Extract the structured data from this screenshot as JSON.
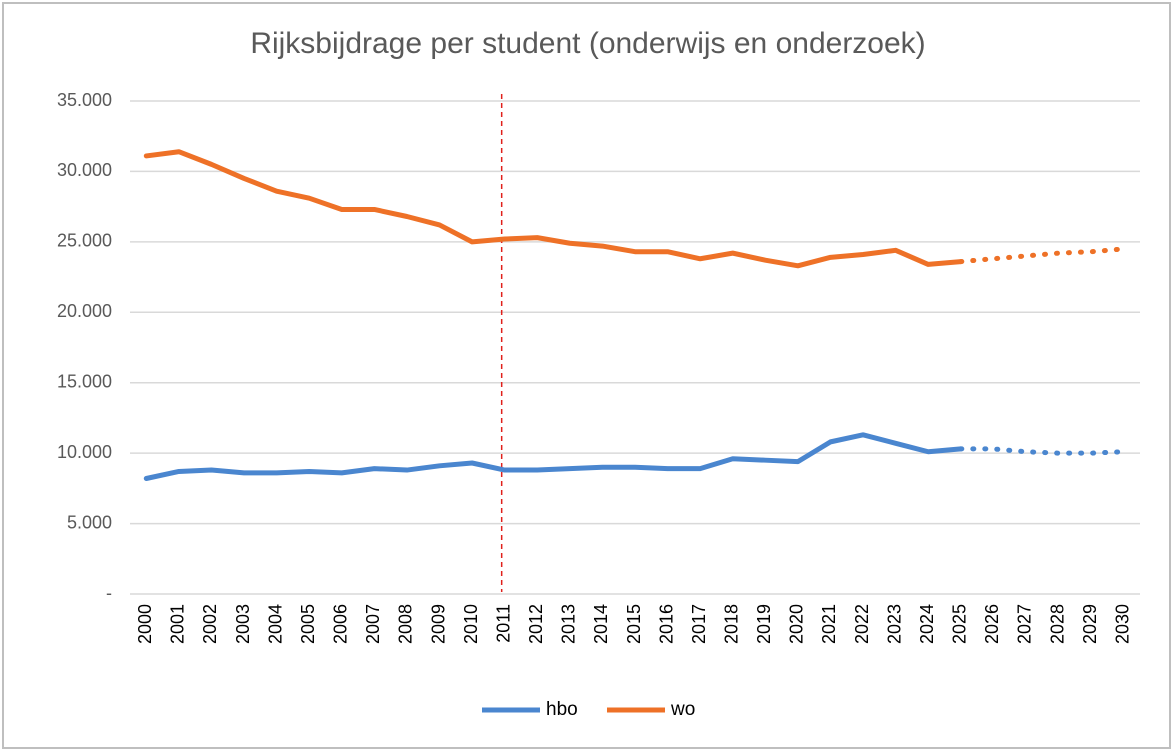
{
  "chart_data": {
    "type": "line",
    "title": "Rijksbijdrage per student (onderwijs en onderzoek)",
    "categories": [
      "2000",
      "2001",
      "2002",
      "2003",
      "2004",
      "2005",
      "2006",
      "2007",
      "2008",
      "2009",
      "2010",
      "2011",
      "2012",
      "2013",
      "2014",
      "2015",
      "2016",
      "2017",
      "2018",
      "2019",
      "2020",
      "2021",
      "2022",
      "2023",
      "2024",
      "2025",
      "2026",
      "2027",
      "2028",
      "2029",
      "2030"
    ],
    "series": [
      {
        "name": "hbo",
        "color": "#4a86cf",
        "values": [
          8200,
          8700,
          8800,
          8600,
          8600,
          8700,
          8600,
          8900,
          8800,
          9100,
          9300,
          8800,
          8800,
          8900,
          9000,
          9000,
          8900,
          8900,
          9600,
          9500,
          9400,
          10800,
          11300,
          10700,
          10100,
          10300,
          10300,
          10100,
          10000,
          10000,
          10100
        ]
      },
      {
        "name": "wo",
        "color": "#ee7127",
        "values": [
          31100,
          31400,
          30500,
          29500,
          28600,
          28100,
          27300,
          27300,
          26800,
          26200,
          25000,
          25200,
          25300,
          24900,
          24700,
          24300,
          24300,
          23800,
          24200,
          23700,
          23300,
          23900,
          24100,
          24400,
          23400,
          23600,
          23800,
          24000,
          24200,
          24300,
          24500
        ]
      }
    ],
    "forecast_from": "2025",
    "vline": {
      "x": "2011",
      "color": "#e0201b"
    },
    "ylim": [
      0,
      35000
    ],
    "yticks": [
      {
        "value": 0,
        "label": "-"
      },
      {
        "value": 5000,
        "label": "5.000"
      },
      {
        "value": 10000,
        "label": "10.000"
      },
      {
        "value": 15000,
        "label": "15.000"
      },
      {
        "value": 20000,
        "label": "20.000"
      },
      {
        "value": 25000,
        "label": "25.000"
      },
      {
        "value": 30000,
        "label": "30.000"
      },
      {
        "value": 35000,
        "label": "35.000"
      }
    ],
    "grid": true,
    "legend": "bottom"
  }
}
